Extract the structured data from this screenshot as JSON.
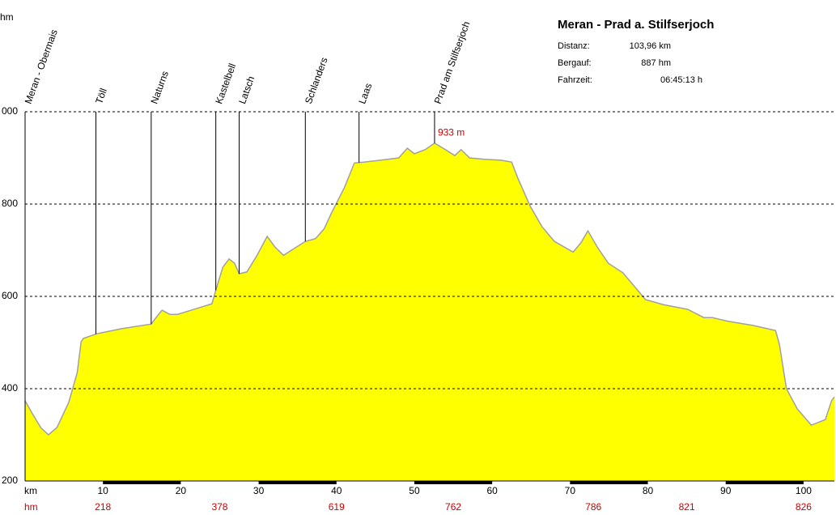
{
  "chart_data": {
    "type": "area",
    "y_unit": "hm",
    "x_unit": "km",
    "climb_unit": "hm",
    "color": "#ffff00",
    "outline_color": "#a0a0a0",
    "grid": true,
    "xlim": [
      0,
      103.96
    ],
    "ylim": [
      200,
      1000
    ],
    "xticks": [
      10,
      20,
      30,
      40,
      50,
      60,
      70,
      80,
      90,
      100
    ],
    "yticks": [
      200,
      400,
      600,
      800,
      {
        "value": 1000,
        "label": "000"
      }
    ],
    "x": [
      0,
      0.9,
      2,
      3,
      4.1,
      5.6,
      6.7,
      7.2,
      7.5,
      9.2,
      12.4,
      16.2,
      17,
      17.6,
      18.6,
      19.6,
      21.7,
      24,
      24.6,
      25.4,
      26.2,
      26.9,
      27.5,
      28.5,
      29.8,
      31.1,
      32.1,
      33.2,
      34.4,
      36,
      37.3,
      38.4,
      39.4,
      41,
      42.3,
      43.6,
      45.6,
      48,
      49.1,
      50,
      51.4,
      52.6,
      54,
      55.2,
      56,
      57.1,
      59.1,
      61.2,
      62.5,
      63.3,
      64.9,
      66.4,
      68,
      70.4,
      71.4,
      72.3,
      73.5,
      74.9,
      76.8,
      78.4,
      79.7,
      82,
      85.1,
      87.2,
      88.3,
      90.3,
      93.5,
      96.4,
      96.9,
      97.8,
      99.2,
      101,
      102.8,
      103.6,
      103.96
    ],
    "values": [
      374,
      347,
      316,
      300,
      316,
      370,
      435,
      502,
      509,
      519,
      530,
      540,
      558,
      570,
      561,
      561,
      572,
      584,
      619,
      663,
      681,
      672,
      649,
      653,
      689,
      730,
      707,
      689,
      702,
      719,
      725,
      746,
      782,
      835,
      889,
      891,
      895,
      900,
      921,
      909,
      918,
      932,
      918,
      905,
      918,
      900,
      897,
      895,
      891,
      856,
      795,
      751,
      719,
      696,
      716,
      742,
      707,
      672,
      651,
      619,
      593,
      582,
      572,
      554,
      554,
      546,
      537,
      526,
      496,
      400,
      356,
      321,
      333,
      374,
      382
    ],
    "waypoints": [
      {
        "name": "Meran - Obermais",
        "km": 0
      },
      {
        "name": "Töll",
        "km": 9.1
      },
      {
        "name": "Naturns",
        "km": 16.2
      },
      {
        "name": "Kastelbell",
        "km": 24.5
      },
      {
        "name": "Latsch",
        "km": 27.5
      },
      {
        "name": "Schlanders",
        "km": 36
      },
      {
        "name": "Laas",
        "km": 42.9
      },
      {
        "name": "Prad am Stilfserjoch",
        "km": 52.6
      }
    ],
    "max_label": "933 m",
    "max_km": 52.6,
    "max_value": 933,
    "climb": {
      "km": [
        10,
        25,
        40,
        55,
        73,
        85,
        100
      ],
      "values": [
        218,
        378,
        619,
        762,
        786,
        821,
        826
      ]
    },
    "info": {
      "title": "Meran - Prad a. Stilfserjoch",
      "rows": [
        [
          "Distanz:",
          "103,96 km"
        ],
        [
          "Bergauf:",
          "887 hm"
        ],
        [
          "Fahrzeit:",
          "06:45:13 h"
        ]
      ]
    }
  }
}
